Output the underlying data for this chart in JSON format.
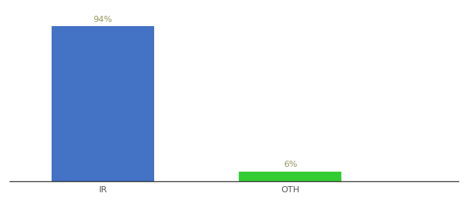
{
  "categories": [
    "IR",
    "OTH"
  ],
  "values": [
    94,
    6
  ],
  "bar_colors": [
    "#4472C4",
    "#33CC33"
  ],
  "bar_labels": [
    "94%",
    "6%"
  ],
  "background_color": "#ffffff",
  "text_color": "#999966",
  "label_fontsize": 9,
  "tick_fontsize": 9,
  "ylim": [
    0,
    100
  ],
  "x_positions": [
    1,
    2
  ],
  "bar_width": 0.55,
  "xlim": [
    0.5,
    2.9
  ]
}
